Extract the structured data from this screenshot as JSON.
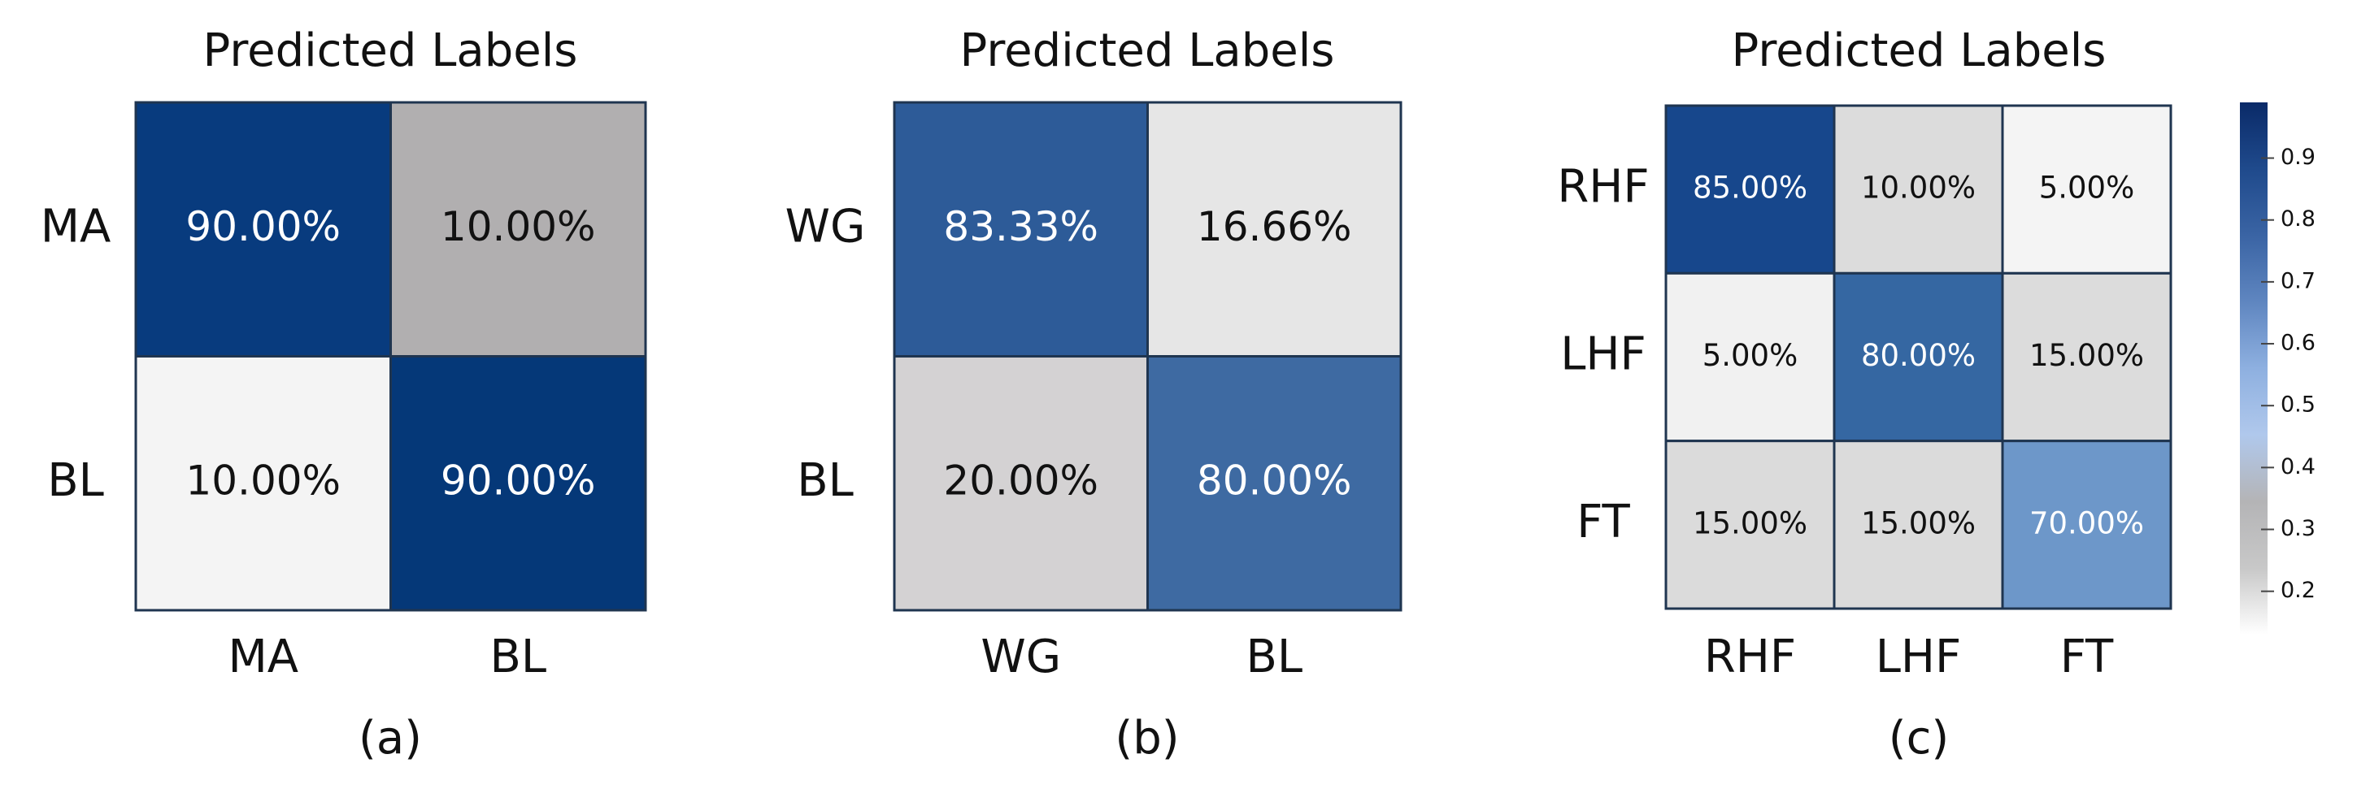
{
  "chart_data": [
    {
      "type": "heatmap",
      "title": "Predicted Labels",
      "caption": "(a)",
      "x_categories": [
        "MA",
        "BL"
      ],
      "y_categories": [
        "MA",
        "BL"
      ],
      "values": [
        [
          0.9,
          0.1
        ],
        [
          0.1,
          0.9
        ]
      ],
      "value_labels": [
        [
          "90.00%",
          "10.00%"
        ],
        [
          "10.00%",
          "90.00%"
        ]
      ],
      "colors": [
        [
          "#083b7e",
          "#b1afb0"
        ],
        [
          "#f4f4f4",
          "#053878"
        ]
      ]
    },
    {
      "type": "heatmap",
      "title": "Predicted Labels",
      "caption": "(b)",
      "x_categories": [
        "WG",
        "BL"
      ],
      "y_categories": [
        "WG",
        "BL"
      ],
      "values": [
        [
          0.8333,
          0.1666
        ],
        [
          0.2,
          0.8
        ]
      ],
      "value_labels": [
        [
          "83.33%",
          "16.66%"
        ],
        [
          "20.00%",
          "80.00%"
        ]
      ],
      "colors": [
        [
          "#2d5b98",
          "#e6e6e6"
        ],
        [
          "#d4d2d3",
          "#3e6aa2"
        ]
      ]
    },
    {
      "type": "heatmap",
      "title": "Predicted Labels",
      "caption": "(c)",
      "x_categories": [
        "RHF",
        "LHF",
        "FT"
      ],
      "y_categories": [
        "RHF",
        "LHF",
        "FT"
      ],
      "values": [
        [
          0.85,
          0.1,
          0.05
        ],
        [
          0.05,
          0.8,
          0.15
        ],
        [
          0.15,
          0.15,
          0.7
        ]
      ],
      "value_labels": [
        [
          "85.00%",
          "10.00%",
          "5.00%"
        ],
        [
          "5.00%",
          "80.00%",
          "15.00%"
        ],
        [
          "15.00%",
          "15.00%",
          "70.00%"
        ]
      ],
      "colors": [
        [
          "#17478c",
          "#dcdcdc",
          "#f4f4f4"
        ],
        [
          "#f1f1f1",
          "#3567a2",
          "#dcdcdc"
        ],
        [
          "#dbdbdb",
          "#dbdbdb",
          "#6d97c9"
        ]
      ],
      "clim": [
        0.13,
        0.99
      ],
      "cticks": [
        0.2,
        0.3,
        0.4,
        0.5,
        0.6,
        0.7,
        0.8,
        0.9
      ],
      "colorbar_colors": [
        "#ffffff",
        "#c8c8c8",
        "#b4b4b6",
        "#b0c8ec",
        "#8eb0e0",
        "#5f86c0",
        "#3a64a4",
        "#1f4a8c",
        "#0a2a68"
      ]
    }
  ]
}
